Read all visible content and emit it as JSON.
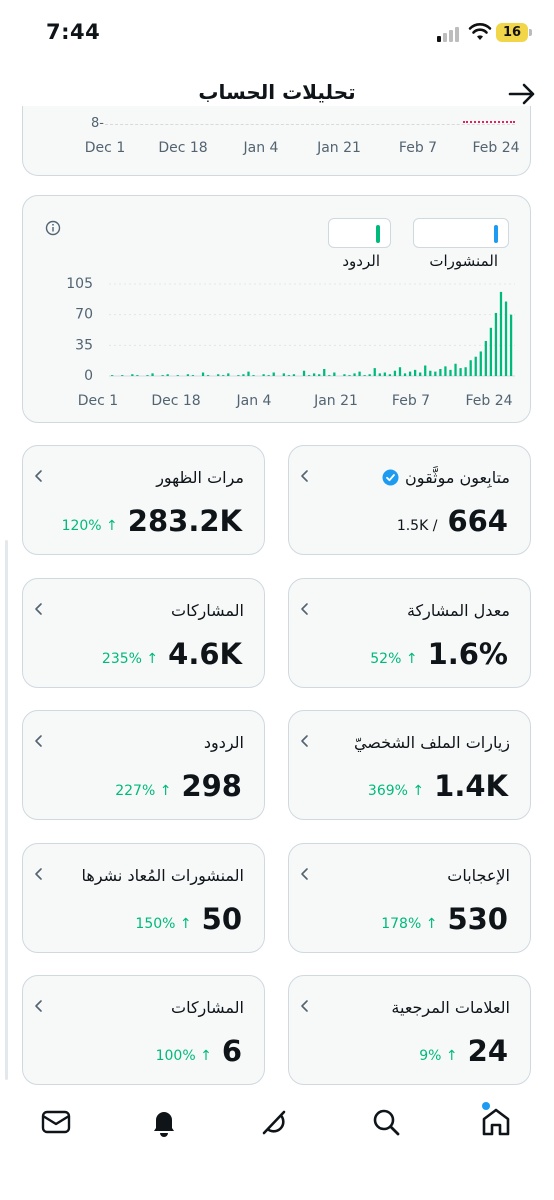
{
  "status": {
    "time": "7:44",
    "battery": "16"
  },
  "header": {
    "title": "تحليلات الحساب"
  },
  "top_axis": {
    "labels": [
      "Dec 1",
      "Dec 18",
      "Jan 4",
      "Jan 21",
      "Feb 7",
      "Feb 24"
    ],
    "partial_tick": "8-"
  },
  "chart": {
    "legend": {
      "posts": "المنشورات",
      "replies": "الردود"
    },
    "colors": {
      "posts": "#1d9bf0",
      "replies": "#00ba7c"
    }
  },
  "chart_data": {
    "type": "bar",
    "series": [
      {
        "name": "المنشورات"
      },
      {
        "name": "الردود"
      }
    ],
    "x_ticks": [
      "Dec 1",
      "Dec 18",
      "Jan 4",
      "Jan 21",
      "Feb 7",
      "Feb 24"
    ],
    "y_ticks": [
      "0",
      "35",
      "70",
      "105"
    ],
    "ylim": [
      0,
      105
    ],
    "values": [
      1,
      0,
      1,
      0,
      2,
      1,
      0,
      1,
      3,
      0,
      1,
      2,
      0,
      1,
      0,
      2,
      1,
      0,
      4,
      1,
      0,
      2,
      1,
      3,
      0,
      1,
      2,
      5,
      1,
      0,
      2,
      1,
      4,
      0,
      3,
      1,
      2,
      0,
      6,
      1,
      3,
      2,
      8,
      1,
      4,
      0,
      2,
      1,
      3,
      5,
      1,
      2,
      9,
      3,
      4,
      2,
      6,
      10,
      3,
      5,
      7,
      4,
      12,
      6,
      5,
      8,
      11,
      7,
      14,
      9,
      10,
      18,
      22,
      28,
      40,
      55,
      72,
      96,
      85,
      70
    ]
  },
  "metrics": [
    {
      "label": "متابِعون موثَّقون",
      "value": "664",
      "sub": "1.5K /",
      "verified": true
    },
    {
      "label": "مرات الظهور",
      "value": "283.2K",
      "change": "120% ↑"
    },
    {
      "label": "معدل المشاركة",
      "value": "1.6%",
      "change": "52% ↑"
    },
    {
      "label": "المشاركات",
      "value": "4.6K",
      "change": "235% ↑"
    },
    {
      "label": "زيارات الملف الشخصيّ",
      "value": "1.4K",
      "change": "369% ↑"
    },
    {
      "label": "الردود",
      "value": "298",
      "change": "227% ↑"
    },
    {
      "label": "الإعجابات",
      "value": "530",
      "change": "178% ↑"
    },
    {
      "label": "المنشورات المُعاد نشرها",
      "value": "50",
      "change": "150% ↑"
    },
    {
      "label": "العلامات المرجعية",
      "value": "24",
      "change": "9% ↑"
    },
    {
      "label": "المشاركات",
      "value": "6",
      "change": "100% ↑"
    }
  ],
  "tabs": [
    "home-icon",
    "search-icon",
    "grok-icon",
    "notifications-icon",
    "messages-icon"
  ]
}
